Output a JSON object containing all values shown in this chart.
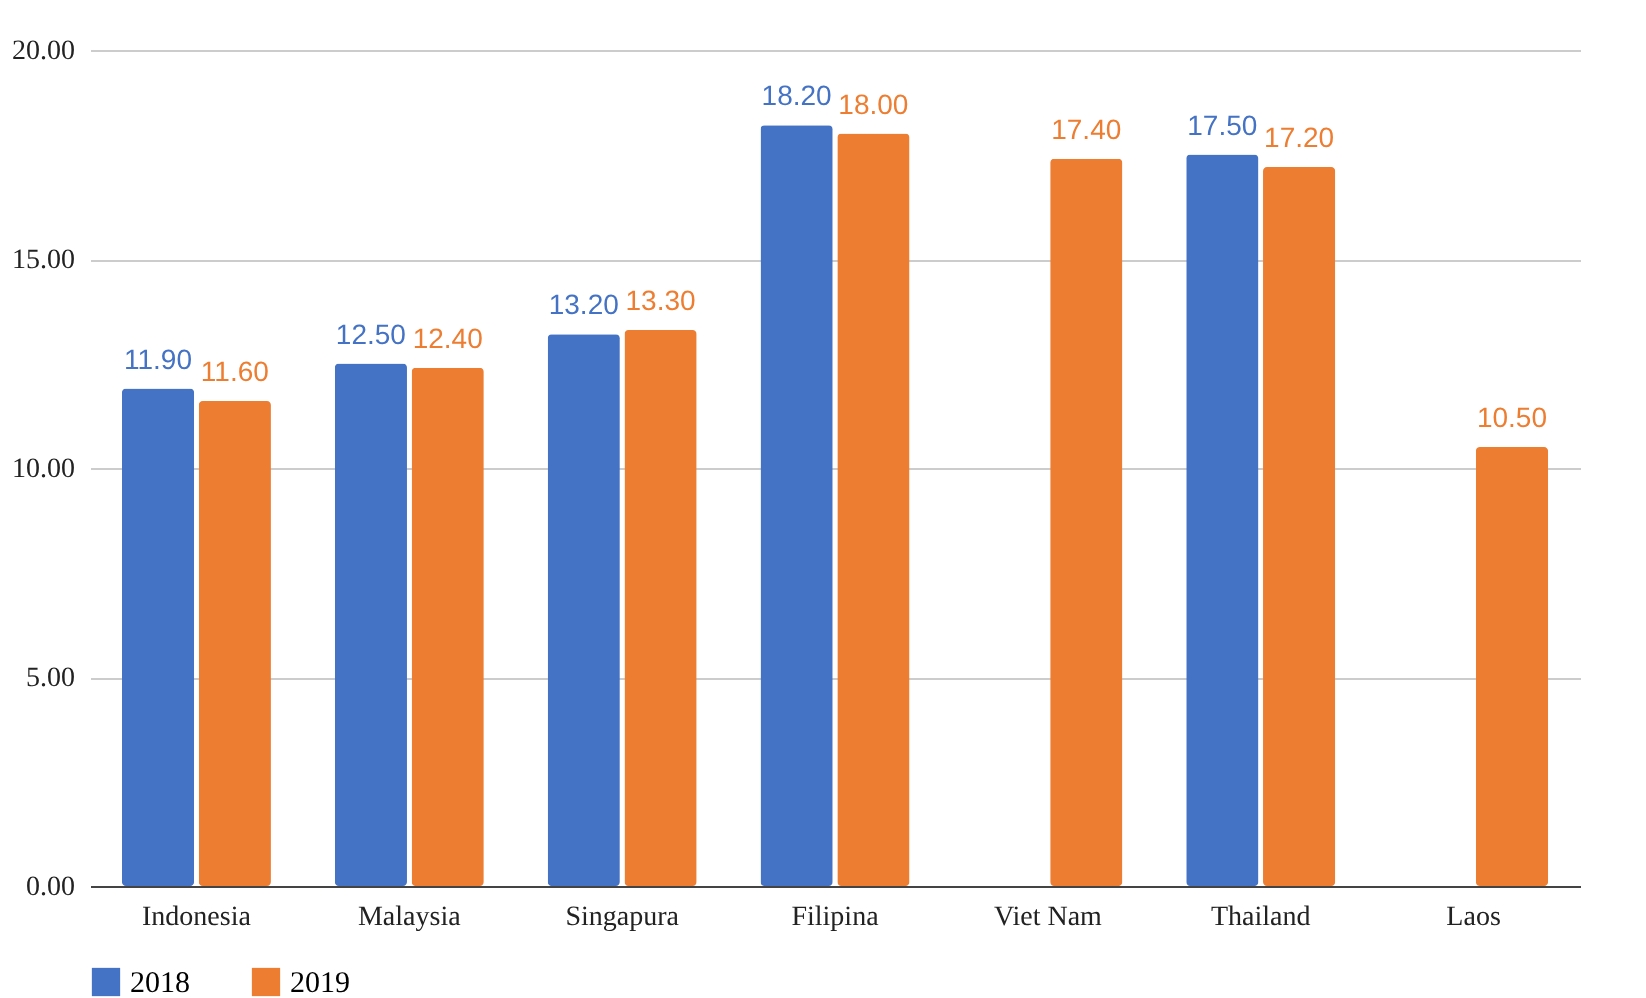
{
  "chart_data": {
    "type": "bar",
    "categories": [
      "Indonesia",
      "Malaysia",
      "Singapura",
      "Filipina",
      "Viet Nam",
      "Thailand",
      "Laos"
    ],
    "series": [
      {
        "name": "2018",
        "color": "#4472c4",
        "values": [
          11.9,
          12.5,
          13.2,
          18.2,
          null,
          17.5,
          null
        ],
        "value_labels": [
          "11.90",
          "12.50",
          "13.20",
          "18.20",
          null,
          "17.50",
          null
        ]
      },
      {
        "name": "2019",
        "color": "#ed7d31",
        "values": [
          11.6,
          12.4,
          13.3,
          18.0,
          17.4,
          17.2,
          10.5
        ],
        "value_labels": [
          "11.60",
          "12.40",
          "13.30",
          "18.00",
          "17.40",
          "17.20",
          "10.50"
        ]
      }
    ],
    "ylim": [
      0,
      20
    ],
    "yticks": [
      {
        "value": 0,
        "label": "0.00"
      },
      {
        "value": 5,
        "label": "5.00"
      },
      {
        "value": 10,
        "label": "10.00"
      },
      {
        "value": 15,
        "label": "15.00"
      },
      {
        "value": 20,
        "label": "20.00"
      }
    ],
    "grid": "y",
    "legend": "bottom"
  }
}
